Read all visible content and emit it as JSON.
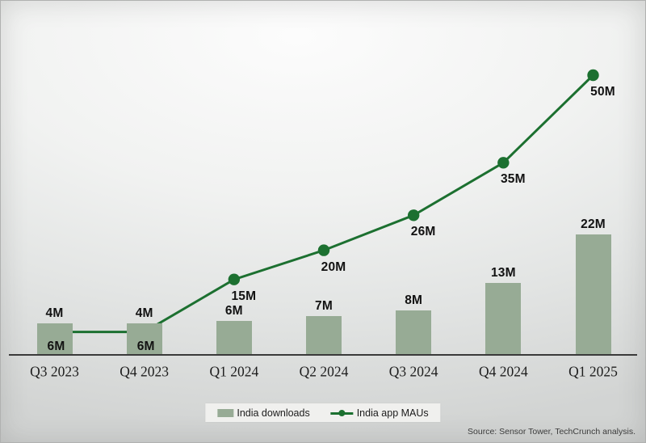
{
  "chart_data": {
    "type": "combo-bar-line",
    "categories": [
      "Q3 2023",
      "Q4 2023",
      "Q1 2024",
      "Q2 2024",
      "Q3 2024",
      "Q4 2024",
      "Q1 2025"
    ],
    "series": [
      {
        "name": "India downloads",
        "type": "bar",
        "values": [
          4,
          4,
          6,
          7,
          8,
          13,
          22
        ],
        "labels": [
          "4M",
          "4M",
          "6M",
          "7M",
          "8M",
          "13M",
          "22M"
        ],
        "color": "#97ab95"
      },
      {
        "name": "India app MAUs",
        "type": "line",
        "values": [
          6,
          6,
          15,
          20,
          26,
          35,
          50
        ],
        "labels": [
          "6M",
          "6M",
          "15M",
          "20M",
          "26M",
          "35M",
          "50M"
        ],
        "color": "#1c7030"
      }
    ],
    "ylim_bar": [
      0,
      24
    ],
    "ylim_line": [
      0,
      55
    ],
    "grid": false,
    "legend_position": "bottom"
  },
  "colors": {
    "bar": "#97ab95",
    "line": "#1c7030",
    "axis": "#3a3a3a",
    "value_label": "#121212"
  },
  "source": {
    "text": "Source: Sensor Tower, TechCrunch analysis."
  }
}
